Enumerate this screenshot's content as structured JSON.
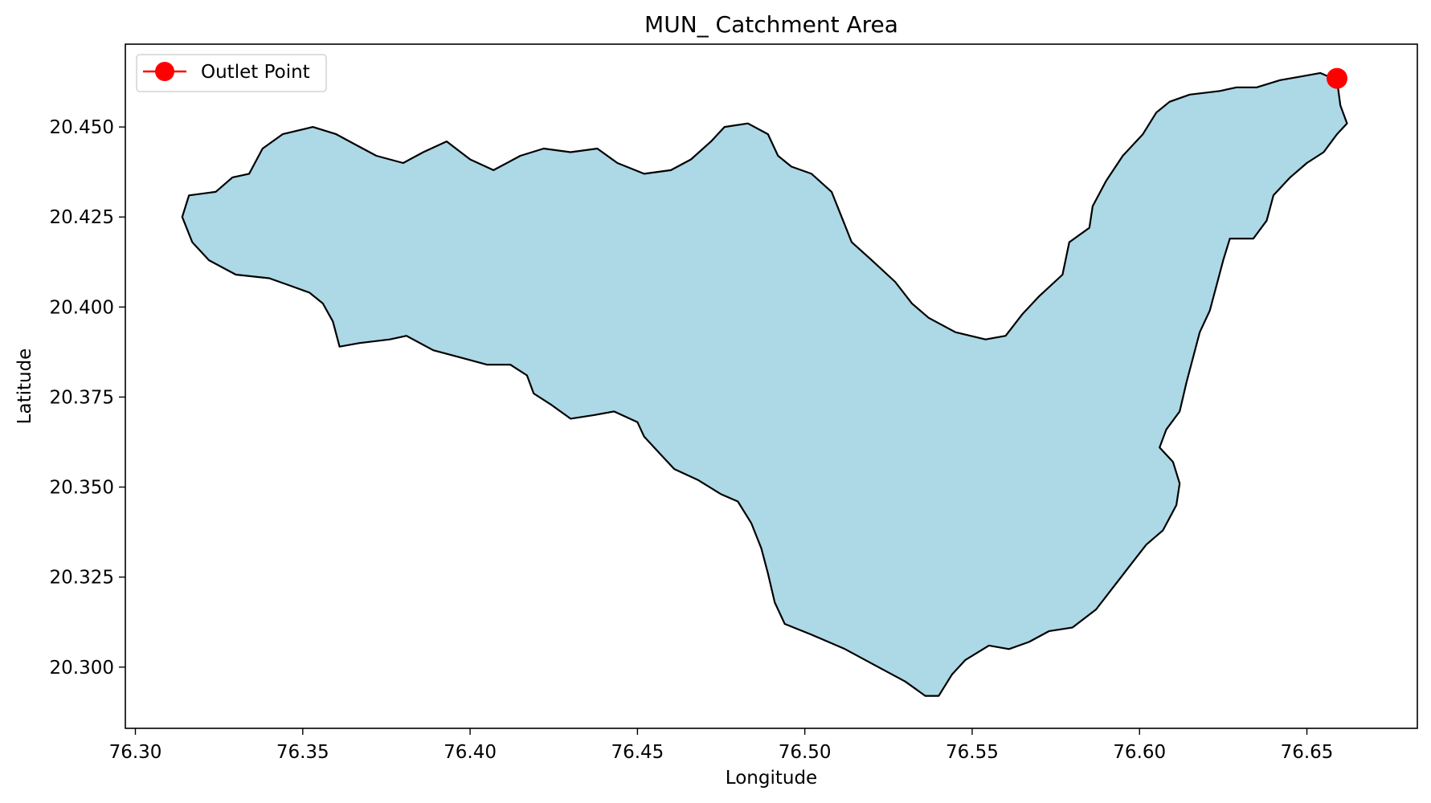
{
  "chart_data": {
    "type": "map",
    "title": "MUN_ Catchment Area",
    "xlabel": "Longitude",
    "ylabel": "Latitude",
    "xlim": [
      76.297,
      76.683
    ],
    "ylim": [
      20.283,
      20.473
    ],
    "x_ticks": [
      {
        "value": 76.3,
        "label": "76.30"
      },
      {
        "value": 76.35,
        "label": "76.35"
      },
      {
        "value": 76.4,
        "label": "76.40"
      },
      {
        "value": 76.45,
        "label": "76.45"
      },
      {
        "value": 76.5,
        "label": "76.50"
      },
      {
        "value": 76.55,
        "label": "76.55"
      },
      {
        "value": 76.6,
        "label": "76.60"
      },
      {
        "value": 76.65,
        "label": "76.65"
      }
    ],
    "y_ticks": [
      {
        "value": 20.3,
        "label": "20.300"
      },
      {
        "value": 20.325,
        "label": "20.325"
      },
      {
        "value": 20.35,
        "label": "20.350"
      },
      {
        "value": 20.375,
        "label": "20.375"
      },
      {
        "value": 20.4,
        "label": "20.400"
      },
      {
        "value": 20.425,
        "label": "20.425"
      },
      {
        "value": 20.45,
        "label": "20.450"
      }
    ],
    "legend": {
      "placement": "upper-left",
      "entries": [
        {
          "label": "Outlet Point",
          "color": "#ff0000",
          "marker": "circle"
        }
      ]
    },
    "catchment": {
      "fill_color": "#add8e6",
      "edge_color": "#000000",
      "boundary": [
        [
          76.659,
          20.463
        ],
        [
          76.654,
          20.465
        ],
        [
          76.648,
          20.464
        ],
        [
          76.642,
          20.463
        ],
        [
          76.635,
          20.461
        ],
        [
          76.629,
          20.461
        ],
        [
          76.624,
          20.46
        ],
        [
          76.615,
          20.459
        ],
        [
          76.609,
          20.457
        ],
        [
          76.605,
          20.454
        ],
        [
          76.601,
          20.448
        ],
        [
          76.595,
          20.442
        ],
        [
          76.59,
          20.435
        ],
        [
          76.586,
          20.428
        ],
        [
          76.585,
          20.422
        ],
        [
          76.579,
          20.418
        ],
        [
          76.577,
          20.409
        ],
        [
          76.57,
          20.403
        ],
        [
          76.565,
          20.398
        ],
        [
          76.56,
          20.392
        ],
        [
          76.554,
          20.391
        ],
        [
          76.545,
          20.393
        ],
        [
          76.537,
          20.397
        ],
        [
          76.532,
          20.401
        ],
        [
          76.527,
          20.407
        ],
        [
          76.52,
          20.413
        ],
        [
          76.514,
          20.418
        ],
        [
          76.511,
          20.425
        ],
        [
          76.508,
          20.432
        ],
        [
          76.502,
          20.437
        ],
        [
          76.496,
          20.439
        ],
        [
          76.492,
          20.442
        ],
        [
          76.489,
          20.448
        ],
        [
          76.483,
          20.451
        ],
        [
          76.476,
          20.45
        ],
        [
          76.472,
          20.446
        ],
        [
          76.466,
          20.441
        ],
        [
          76.46,
          20.438
        ],
        [
          76.452,
          20.437
        ],
        [
          76.444,
          20.44
        ],
        [
          76.438,
          20.444
        ],
        [
          76.43,
          20.443
        ],
        [
          76.422,
          20.444
        ],
        [
          76.415,
          20.442
        ],
        [
          76.407,
          20.438
        ],
        [
          76.4,
          20.441
        ],
        [
          76.393,
          20.446
        ],
        [
          76.386,
          20.443
        ],
        [
          76.38,
          20.44
        ],
        [
          76.372,
          20.442
        ],
        [
          76.366,
          20.445
        ],
        [
          76.36,
          20.448
        ],
        [
          76.353,
          20.45
        ],
        [
          76.344,
          20.448
        ],
        [
          76.338,
          20.444
        ],
        [
          76.334,
          20.437
        ],
        [
          76.329,
          20.436
        ],
        [
          76.324,
          20.432
        ],
        [
          76.316,
          20.431
        ],
        [
          76.314,
          20.425
        ],
        [
          76.317,
          20.418
        ],
        [
          76.322,
          20.413
        ],
        [
          76.33,
          20.409
        ],
        [
          76.34,
          20.408
        ],
        [
          76.346,
          20.406
        ],
        [
          76.352,
          20.404
        ],
        [
          76.356,
          20.401
        ],
        [
          76.359,
          20.396
        ],
        [
          76.361,
          20.389
        ],
        [
          76.367,
          20.39
        ],
        [
          76.376,
          20.391
        ],
        [
          76.381,
          20.392
        ],
        [
          76.389,
          20.388
        ],
        [
          76.397,
          20.386
        ],
        [
          76.405,
          20.384
        ],
        [
          76.412,
          20.384
        ],
        [
          76.417,
          20.381
        ],
        [
          76.419,
          20.376
        ],
        [
          76.424,
          20.373
        ],
        [
          76.43,
          20.369
        ],
        [
          76.437,
          20.37
        ],
        [
          76.443,
          20.371
        ],
        [
          76.45,
          20.368
        ],
        [
          76.452,
          20.364
        ],
        [
          76.457,
          20.359
        ],
        [
          76.461,
          20.355
        ],
        [
          76.468,
          20.352
        ],
        [
          76.475,
          20.348
        ],
        [
          76.48,
          20.346
        ],
        [
          76.484,
          20.34
        ],
        [
          76.487,
          20.333
        ],
        [
          76.489,
          20.326
        ],
        [
          76.491,
          20.318
        ],
        [
          76.494,
          20.312
        ],
        [
          76.502,
          20.309
        ],
        [
          76.512,
          20.305
        ],
        [
          76.522,
          20.3
        ],
        [
          76.53,
          20.296
        ],
        [
          76.536,
          20.292
        ],
        [
          76.54,
          20.292
        ],
        [
          76.544,
          20.298
        ],
        [
          76.548,
          20.302
        ],
        [
          76.555,
          20.306
        ],
        [
          76.561,
          20.305
        ],
        [
          76.567,
          20.307
        ],
        [
          76.573,
          20.31
        ],
        [
          76.58,
          20.311
        ],
        [
          76.587,
          20.316
        ],
        [
          76.592,
          20.322
        ],
        [
          76.597,
          20.328
        ],
        [
          76.602,
          20.334
        ],
        [
          76.607,
          20.338
        ],
        [
          76.611,
          20.345
        ],
        [
          76.612,
          20.351
        ],
        [
          76.61,
          20.357
        ],
        [
          76.606,
          20.361
        ],
        [
          76.608,
          20.366
        ],
        [
          76.612,
          20.371
        ],
        [
          76.614,
          20.379
        ],
        [
          76.616,
          20.386
        ],
        [
          76.618,
          20.393
        ],
        [
          76.621,
          20.399
        ],
        [
          76.623,
          20.406
        ],
        [
          76.625,
          20.413
        ],
        [
          76.627,
          20.419
        ],
        [
          76.634,
          20.419
        ],
        [
          76.638,
          20.424
        ],
        [
          76.64,
          20.431
        ],
        [
          76.645,
          20.436
        ],
        [
          76.65,
          20.44
        ],
        [
          76.655,
          20.443
        ],
        [
          76.659,
          20.448
        ],
        [
          76.662,
          20.451
        ],
        [
          76.66,
          20.456
        ],
        [
          76.659,
          20.463
        ]
      ]
    },
    "outlet_point": {
      "label": "Outlet Point",
      "lon": 76.659,
      "lat": 20.4635,
      "color": "#ff0000"
    }
  }
}
